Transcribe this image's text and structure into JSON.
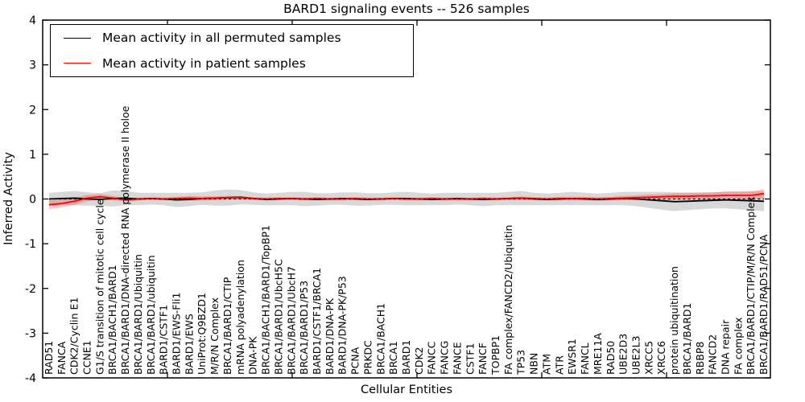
{
  "window": {
    "title": "BARD1 signaling events -- 526 samples"
  },
  "chart_data": {
    "type": "line",
    "title": "BARD1 signaling events -- 526 samples",
    "xlabel": "Cellular Entities",
    "ylabel": "Inferred Activity",
    "ylim": [
      -4,
      4
    ],
    "yticks": [
      -4,
      -3,
      -2,
      -1,
      0,
      1,
      2,
      3,
      4
    ],
    "grid": false,
    "legend_position": "upper left",
    "zero_line": {
      "style": "dashed",
      "color": "#000000"
    },
    "categories": [
      "RAD51",
      "FANCA",
      "CDK2/Cyclin E1",
      "CCNE1",
      "G1/S transition of mitotic cell cycle",
      "BRCA1/BACH1/BARD1",
      "BRCA1/BARD1/DNA-directed RNA polymerase II holoe",
      "BRCA1/BARD1/Ubiquitin",
      "BRCA1/BARD1/ubiquitin",
      "BARD1/CSTF1",
      "BARD1/EWS-Fli1",
      "BARD1/EWS",
      "UniProt:Q9BZD1",
      "M/R/N Complex",
      "BRCA1/BARD1/CTIP",
      "mRNA polyadenylation",
      "DNA-PK",
      "BRCA1/BACH1/BARD1/TopBP1",
      "BRCA1/BARD1/UbcH5C",
      "BRCA1/BARD1/UbcH7",
      "BRCA1/BARD1/P53",
      "BARD1/CSTF1/BRCA1",
      "BARD1/DNA-PK",
      "BARD1/DNA-PK/P53",
      "PCNA",
      "PRKDC",
      "BRCA1/BACH1",
      "BRCA1",
      "BARD1",
      "CDK2",
      "FANCC",
      "FANCG",
      "FANCE",
      "CSTF1",
      "FANCF",
      "TOPBP1",
      "FA complex/FANCD2/Ubiquitin",
      "TP53",
      "NBN",
      "ATM",
      "ATR",
      "EWSR1",
      "FANCL",
      "MRE11A",
      "RAD50",
      "UBE2D3",
      "UBE2L3",
      "XRCC5",
      "XRCC6",
      "protein ubiquitination",
      "BRCA1/BARD1",
      "RBBP8",
      "FANCD2",
      "DNA repair",
      "FA complex",
      "BRCA1/BARD1/CTIP/M/R/N Complex",
      "BRCA1/BARD1/RAD51/PCNA"
    ],
    "series": [
      {
        "name": "Mean activity in all permuted samples",
        "color": "#000000",
        "band_color": "#999999",
        "band_opacity": 0.38,
        "values": [
          0.0,
          0.01,
          0.02,
          0.0,
          -0.01,
          0.01,
          0.02,
          0.0,
          0.01,
          0.0,
          -0.02,
          -0.01,
          0.01,
          0.02,
          0.03,
          0.04,
          0.01,
          -0.01,
          0.0,
          0.01,
          0.0,
          -0.01,
          0.0,
          0.01,
          0.0,
          -0.01,
          0.0,
          0.01,
          0.01,
          0.0,
          -0.01,
          0.0,
          0.01,
          0.0,
          -0.01,
          0.0,
          0.01,
          0.02,
          0.0,
          -0.01,
          0.0,
          0.01,
          0.0,
          -0.01,
          0.0,
          0.01,
          0.0,
          -0.02,
          -0.04,
          -0.06,
          -0.05,
          -0.04,
          -0.03,
          -0.02,
          -0.03,
          -0.04,
          -0.05
        ],
        "band_halfwidth": [
          0.14,
          0.15,
          0.16,
          0.15,
          0.14,
          0.18,
          0.16,
          0.14,
          0.13,
          0.14,
          0.16,
          0.15,
          0.14,
          0.17,
          0.18,
          0.16,
          0.14,
          0.13,
          0.14,
          0.15,
          0.16,
          0.14,
          0.13,
          0.14,
          0.15,
          0.14,
          0.13,
          0.14,
          0.15,
          0.14,
          0.13,
          0.14,
          0.13,
          0.14,
          0.15,
          0.14,
          0.15,
          0.16,
          0.14,
          0.13,
          0.14,
          0.15,
          0.14,
          0.13,
          0.14,
          0.15,
          0.16,
          0.18,
          0.2,
          0.21,
          0.2,
          0.19,
          0.18,
          0.19,
          0.2,
          0.21,
          0.22
        ]
      },
      {
        "name": "Mean activity in patient samples",
        "color": "#ff0000",
        "band_color": "#ff0000",
        "band_opacity": 0.22,
        "values": [
          -0.13,
          -0.1,
          -0.05,
          0.02,
          0.05,
          0.02,
          -0.02,
          0.0,
          0.01,
          0.0,
          0.01,
          0.02,
          0.01,
          0.02,
          0.03,
          0.03,
          0.01,
          0.0,
          0.01,
          0.01,
          0.0,
          0.01,
          0.0,
          0.0,
          0.01,
          0.0,
          0.0,
          0.01,
          0.0,
          0.0,
          0.01,
          0.0,
          0.0,
          0.0,
          0.01,
          0.0,
          0.01,
          0.02,
          0.01,
          0.0,
          0.01,
          0.01,
          0.01,
          0.0,
          0.01,
          0.02,
          0.03,
          0.04,
          0.05,
          0.06,
          0.06,
          0.07,
          0.07,
          0.08,
          0.08,
          0.08,
          0.12
        ],
        "band_halfwidth": [
          0.1,
          0.09,
          0.08,
          0.07,
          0.06,
          0.05,
          0.04,
          0.03,
          0.03,
          0.03,
          0.04,
          0.05,
          0.05,
          0.04,
          0.04,
          0.03,
          0.03,
          0.03,
          0.03,
          0.03,
          0.03,
          0.03,
          0.03,
          0.03,
          0.03,
          0.03,
          0.03,
          0.03,
          0.03,
          0.03,
          0.03,
          0.03,
          0.03,
          0.03,
          0.03,
          0.03,
          0.03,
          0.04,
          0.03,
          0.03,
          0.04,
          0.04,
          0.04,
          0.04,
          0.04,
          0.05,
          0.05,
          0.06,
          0.06,
          0.07,
          0.07,
          0.07,
          0.08,
          0.08,
          0.08,
          0.09,
          0.1
        ]
      }
    ]
  },
  "legend": {
    "entries": [
      {
        "label": "Mean activity in all permuted samples",
        "color": "#000000"
      },
      {
        "label": "Mean activity in patient samples",
        "color": "#ff0000"
      }
    ]
  }
}
